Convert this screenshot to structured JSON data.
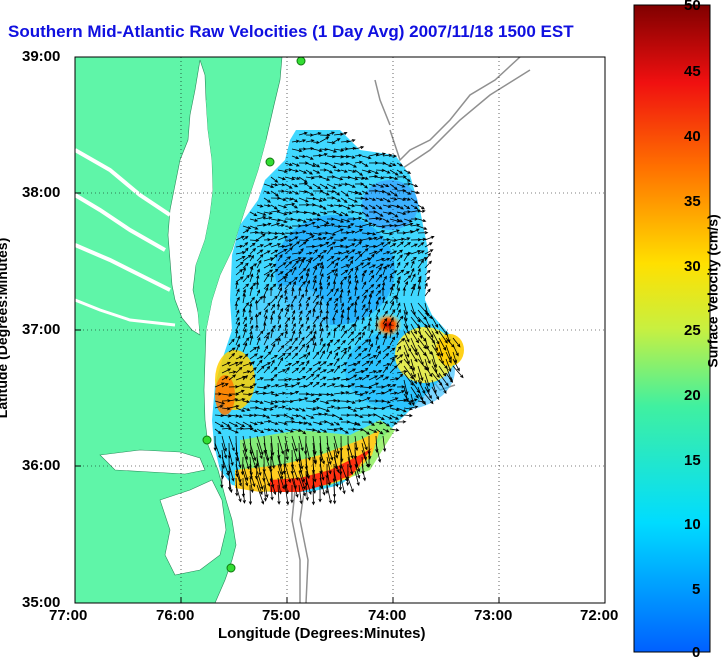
{
  "title": "Southern Mid-Atlantic Raw Velocities (1 Day Avg) 2007/11/18 1500 EST",
  "xlabel": "Longitude (Degrees:Minutes)",
  "ylabel": "Latitude (Degrees:Minutes)",
  "colorbar_label": "Surface Velocity (cm/s)",
  "x_ticks": [
    "77:00",
    "76:00",
    "75:00",
    "74:00",
    "73:00",
    "72:00"
  ],
  "y_ticks": [
    "39:00",
    "38:00",
    "37:00",
    "36:00",
    "35:00"
  ],
  "colorbar_ticks": [
    "50",
    "45",
    "40",
    "35",
    "30",
    "25",
    "20",
    "15",
    "10",
    "5",
    "0"
  ],
  "colors": {
    "title": "#1010e0",
    "land": "#5ff5a8",
    "ocean": "#ffffff",
    "bathymetry": "#909090",
    "station": "#33dd33"
  }
}
